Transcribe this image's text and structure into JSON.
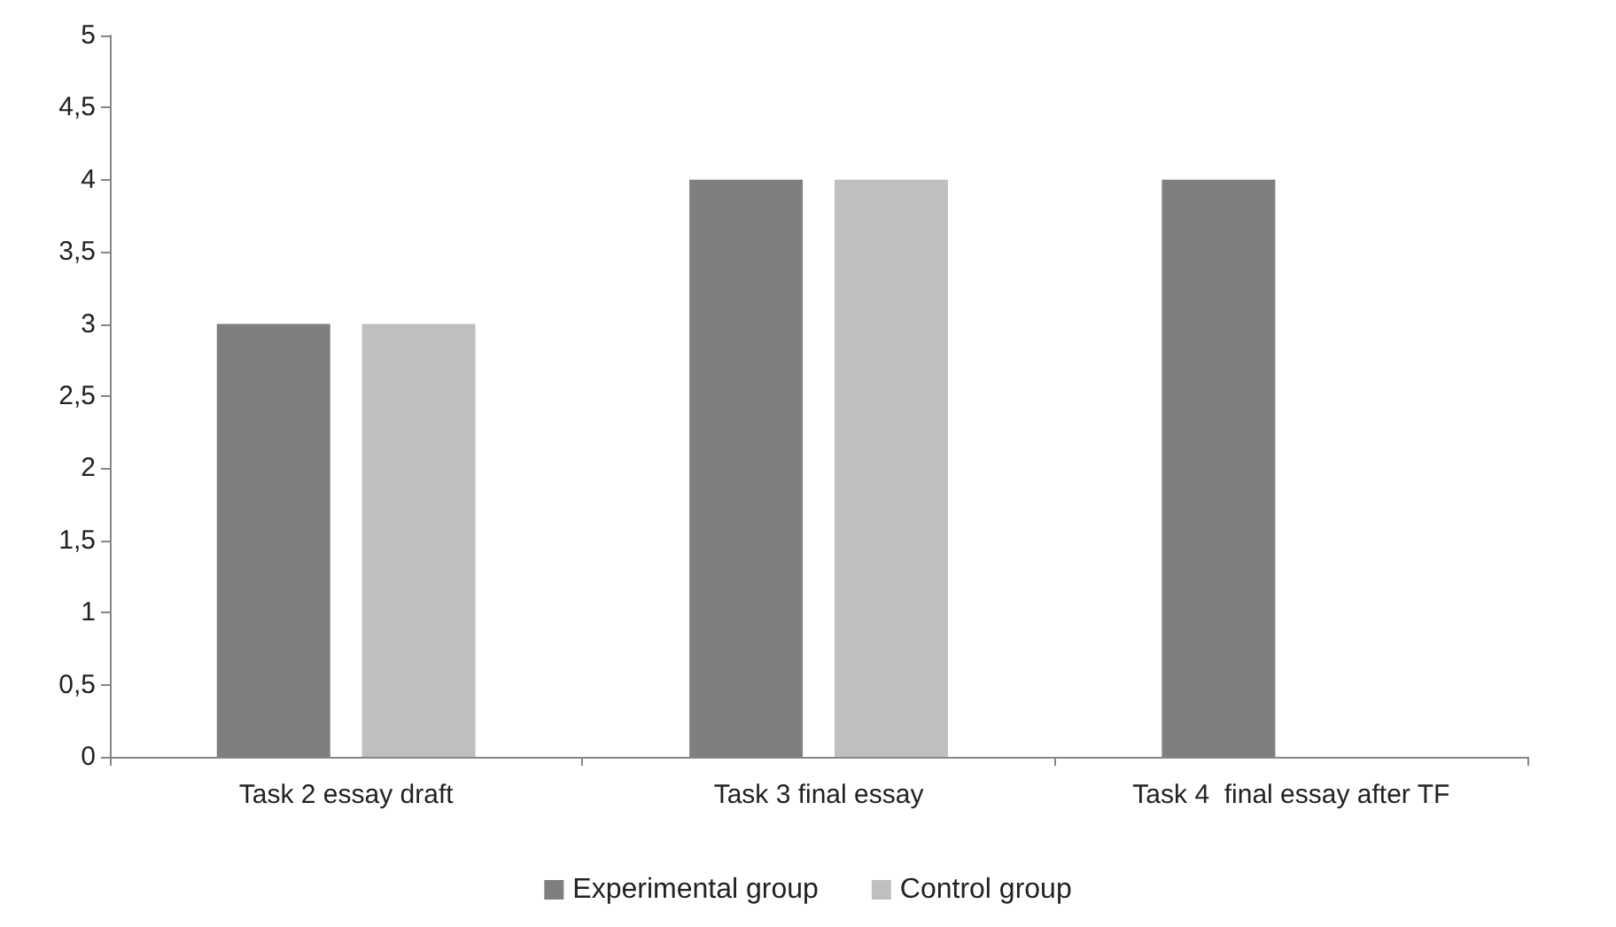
{
  "chart_data": {
    "type": "bar",
    "categories": [
      "Task 2 essay draft",
      "Task 3 final essay",
      "Task 4  final essay after TF"
    ],
    "series": [
      {
        "name": "Experimental group",
        "color": "#7f7f81",
        "values": [
          3,
          4,
          4
        ]
      },
      {
        "name": "Control group",
        "color": "#bfbfc1",
        "values": [
          3,
          4,
          null
        ]
      }
    ],
    "ylim": [
      0,
      5
    ],
    "yticks": [
      0,
      {
        "value": 0.5,
        "label": "0,5"
      },
      1,
      {
        "value": 1.5,
        "label": "1,5"
      },
      2,
      {
        "value": 2.5,
        "label": "2,5"
      },
      3,
      {
        "value": 3.5,
        "label": "3,5"
      },
      4,
      {
        "value": 4.5,
        "label": "4,5"
      },
      5
    ],
    "grid": false,
    "legend": "bottom"
  }
}
